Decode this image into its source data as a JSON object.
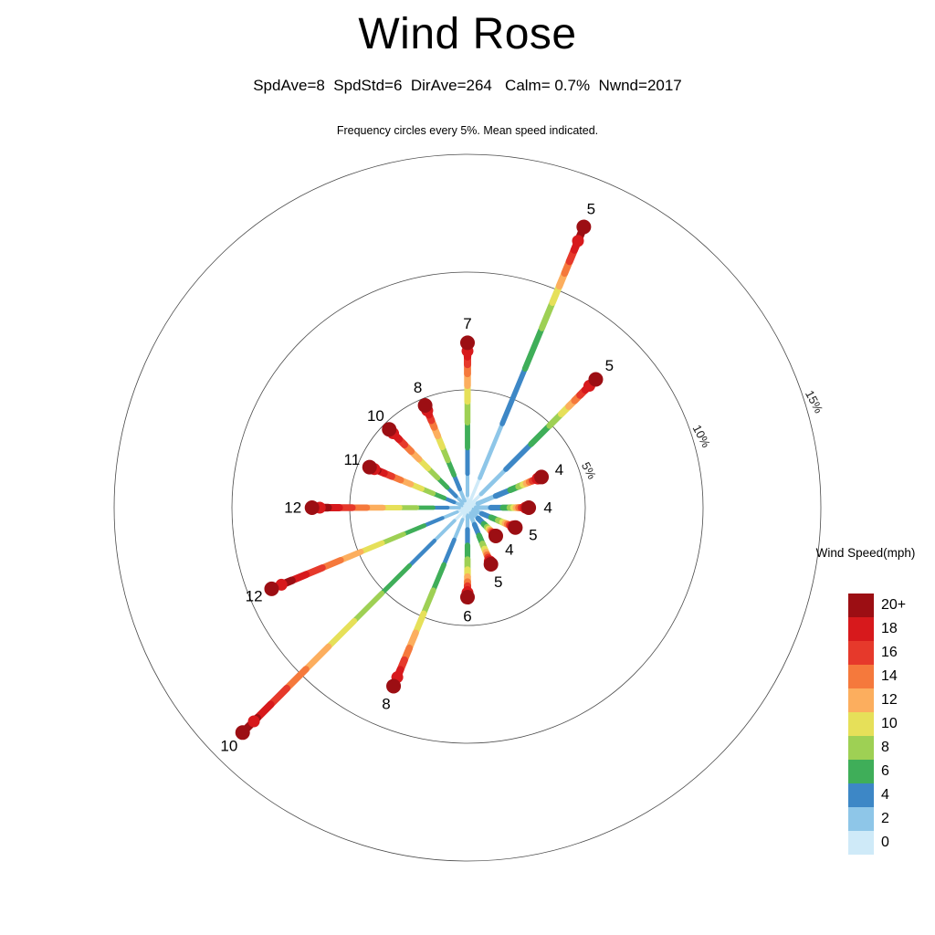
{
  "title": "Wind Rose",
  "stats_line": "SpdAve=8  SpdStd=6  DirAve=264   Calm= 0.7%  Nwnd=2017",
  "note": "Frequency circles every 5%. Mean speed indicated.",
  "chart_data": {
    "type": "windrose",
    "title": "Wind Rose",
    "speed_ave_mph": 8,
    "speed_std_mph": 6,
    "dir_ave_deg": 264,
    "calm_pct": 0.7,
    "n_obs": 2017,
    "frequency_rings_pct": [
      5,
      10,
      15
    ],
    "ring_labels": [
      "5%",
      "10%",
      "15%"
    ],
    "legend": {
      "title": "Wind Speed(mph)",
      "labels": [
        "20+",
        "18",
        "16",
        "14",
        "12",
        "10",
        "8",
        "6",
        "4",
        "2",
        "0"
      ],
      "colors": [
        "#9c0e13",
        "#d7191c",
        "#e6392b",
        "#f5793c",
        "#fcae5e",
        "#e6e059",
        "#9ed054",
        "#3fae59",
        "#3d87c6",
        "#8ec6e8",
        "#cfeaf8"
      ]
    },
    "rays": [
      {
        "dir": "N",
        "bearing_deg": 0,
        "frequency_pct": 7.0,
        "mean_speed_mph": 7
      },
      {
        "dir": "NNE",
        "bearing_deg": 22.5,
        "frequency_pct": 12.9,
        "mean_speed_mph": 5
      },
      {
        "dir": "NE",
        "bearing_deg": 45,
        "frequency_pct": 7.7,
        "mean_speed_mph": 5
      },
      {
        "dir": "ENE",
        "bearing_deg": 67.5,
        "frequency_pct": 3.4,
        "mean_speed_mph": 4
      },
      {
        "dir": "E",
        "bearing_deg": 90,
        "frequency_pct": 2.6,
        "mean_speed_mph": 4
      },
      {
        "dir": "ESE",
        "bearing_deg": 112.5,
        "frequency_pct": 2.2,
        "mean_speed_mph": 5
      },
      {
        "dir": "SE",
        "bearing_deg": 135,
        "frequency_pct": 1.7,
        "mean_speed_mph": 4
      },
      {
        "dir": "SSE",
        "bearing_deg": 157.5,
        "frequency_pct": 2.6,
        "mean_speed_mph": 5
      },
      {
        "dir": "S",
        "bearing_deg": 180,
        "frequency_pct": 3.8,
        "mean_speed_mph": 6
      },
      {
        "dir": "SSW",
        "bearing_deg": 202.5,
        "frequency_pct": 8.2,
        "mean_speed_mph": 8
      },
      {
        "dir": "SW",
        "bearing_deg": 225,
        "frequency_pct": 13.5,
        "mean_speed_mph": 10
      },
      {
        "dir": "WSW",
        "bearing_deg": 247.5,
        "frequency_pct": 9.0,
        "mean_speed_mph": 12
      },
      {
        "dir": "W",
        "bearing_deg": 270,
        "frequency_pct": 6.6,
        "mean_speed_mph": 12
      },
      {
        "dir": "WNW",
        "bearing_deg": 292.5,
        "frequency_pct": 4.5,
        "mean_speed_mph": 11
      },
      {
        "dir": "NW",
        "bearing_deg": 315,
        "frequency_pct": 4.7,
        "mean_speed_mph": 10
      },
      {
        "dir": "NNW",
        "bearing_deg": 337.5,
        "frequency_pct": 4.7,
        "mean_speed_mph": 8
      }
    ]
  }
}
